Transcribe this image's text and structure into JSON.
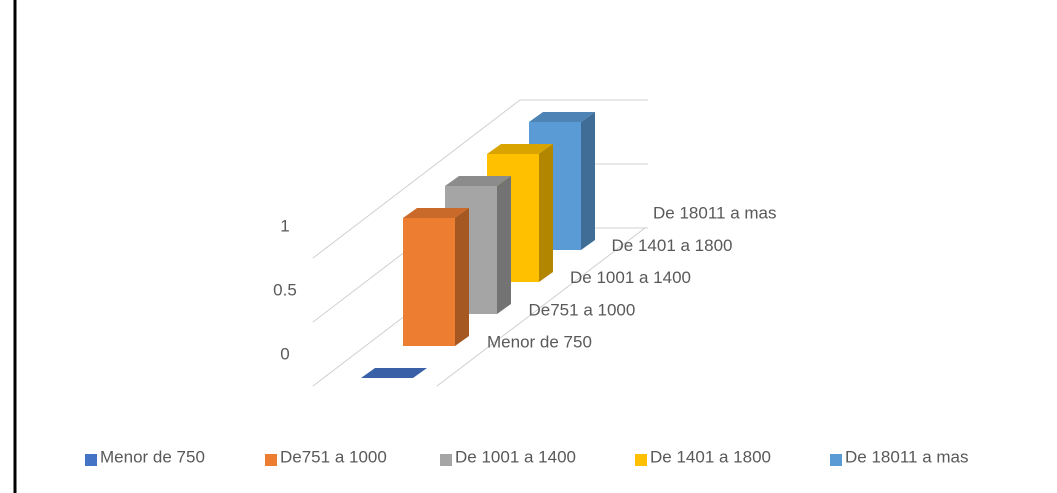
{
  "chart_data": {
    "type": "bar3d",
    "series": [
      {
        "name": "Menor de 750",
        "color": "#4472c4",
        "values": [
          0
        ]
      },
      {
        "name": "De751 a 1000",
        "color": "#ed7d31",
        "values": [
          1
        ]
      },
      {
        "name": "De 1001 a 1400",
        "color": "#a5a5a5",
        "values": [
          1
        ]
      },
      {
        "name": "De 1401 a 1800",
        "color": "#ffc000",
        "values": [
          1
        ]
      },
      {
        "name": "De 18011 a mas",
        "color": "#5b9bd5",
        "values": [
          1
        ]
      }
    ],
    "ylim": [
      0,
      1
    ],
    "yticks": [
      0,
      0.5,
      1
    ],
    "grid": true
  }
}
